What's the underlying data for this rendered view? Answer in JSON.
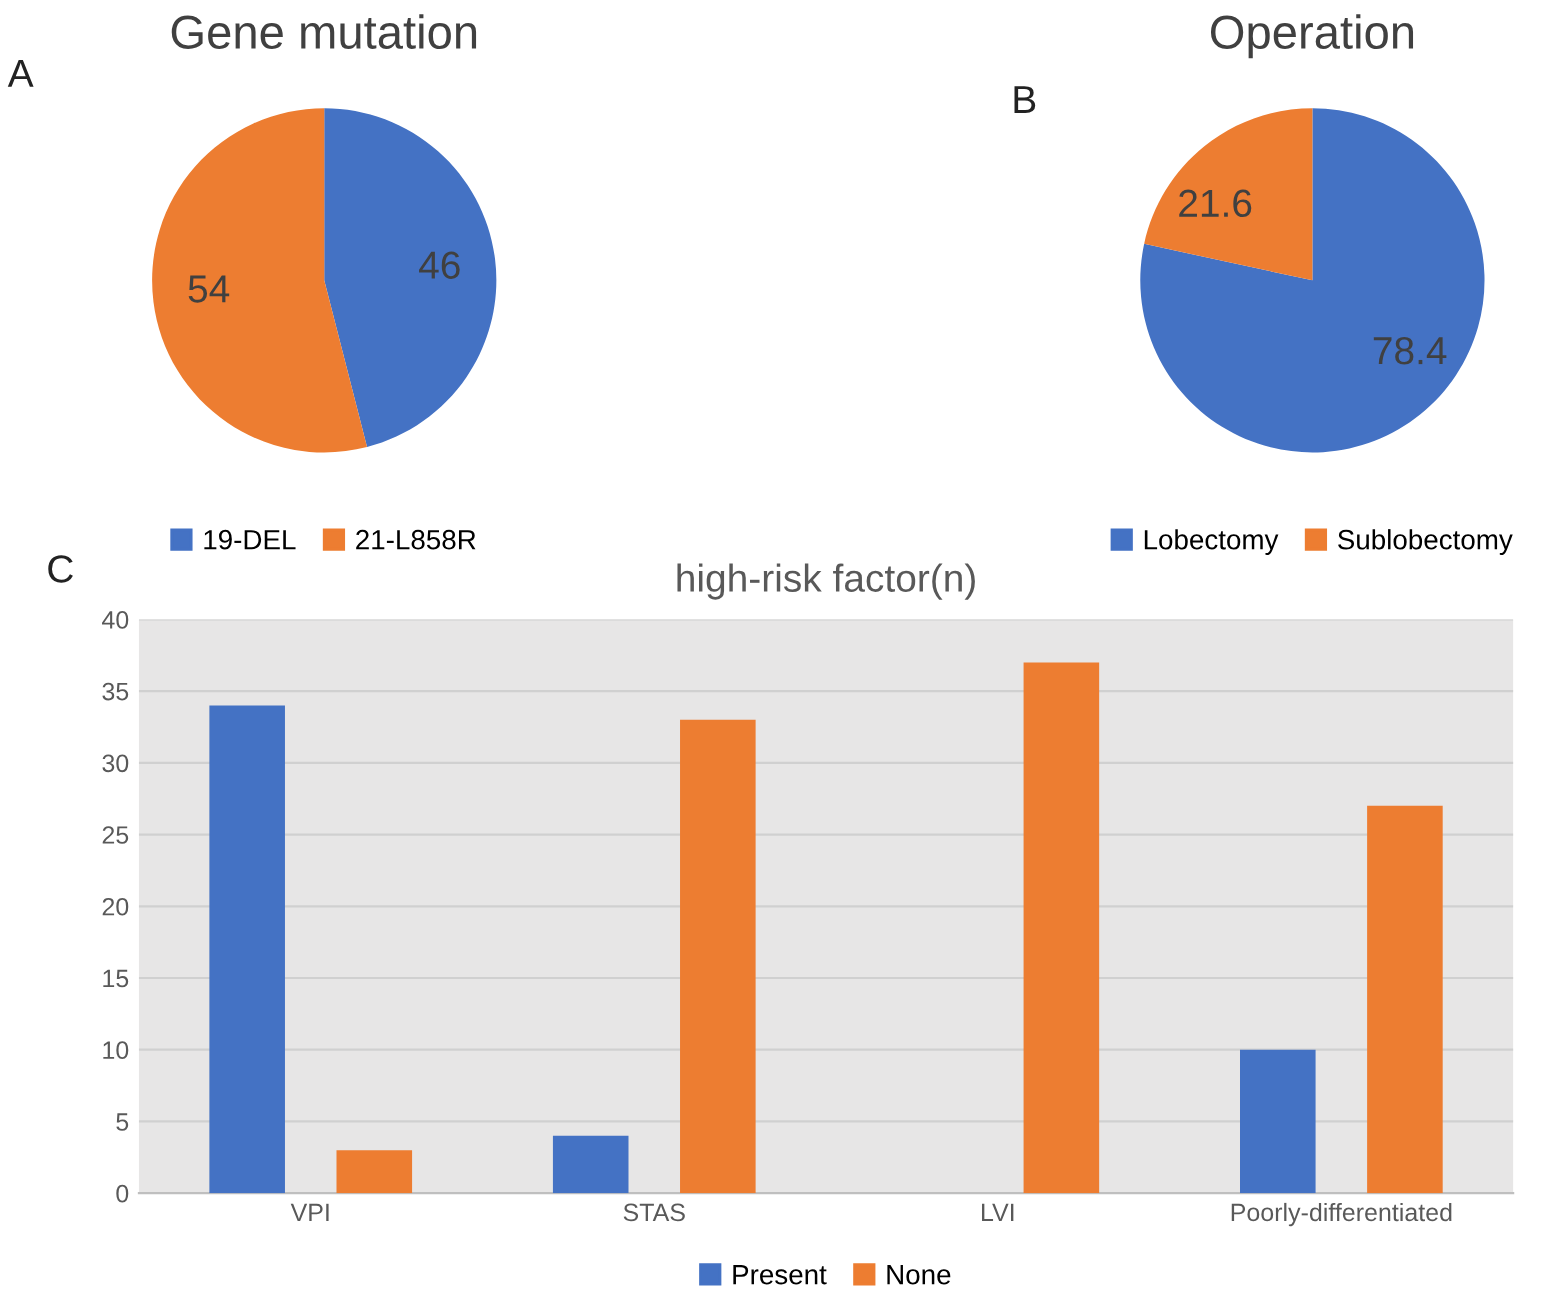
{
  "chart_data": [
    {
      "type": "pie",
      "title": "Gene mutation",
      "annotations": [
        "A"
      ],
      "categories": [
        "19-DEL",
        "21-L858R"
      ],
      "values": [
        46,
        54
      ],
      "colors": [
        "#4472c4",
        "#ed7d31"
      ],
      "data_labels": true,
      "legend": "bottom"
    },
    {
      "type": "pie",
      "title": "Operation",
      "annotations": [
        "B"
      ],
      "categories": [
        "Lobectomy",
        "Sublobectomy"
      ],
      "values": [
        78.4,
        21.6
      ],
      "colors": [
        "#4472c4",
        "#ed7d31"
      ],
      "data_labels": true,
      "legend": "bottom"
    },
    {
      "type": "bar",
      "title": "high-risk factor(n)",
      "annotations": [
        "C"
      ],
      "categories": [
        "VPI",
        "STAS",
        "LVI",
        "Poorly-differentiated"
      ],
      "series": [
        {
          "name": "Present",
          "color": "#4472c4",
          "values": [
            34,
            4,
            0,
            10
          ]
        },
        {
          "name": "None",
          "color": "#ed7d31",
          "values": [
            3,
            33,
            37,
            27
          ]
        }
      ],
      "ylim": [
        0,
        40
      ],
      "yticks": [
        0,
        5,
        10,
        15,
        20,
        25,
        30,
        35,
        40
      ],
      "grid": "y",
      "legend": "bottom"
    }
  ]
}
